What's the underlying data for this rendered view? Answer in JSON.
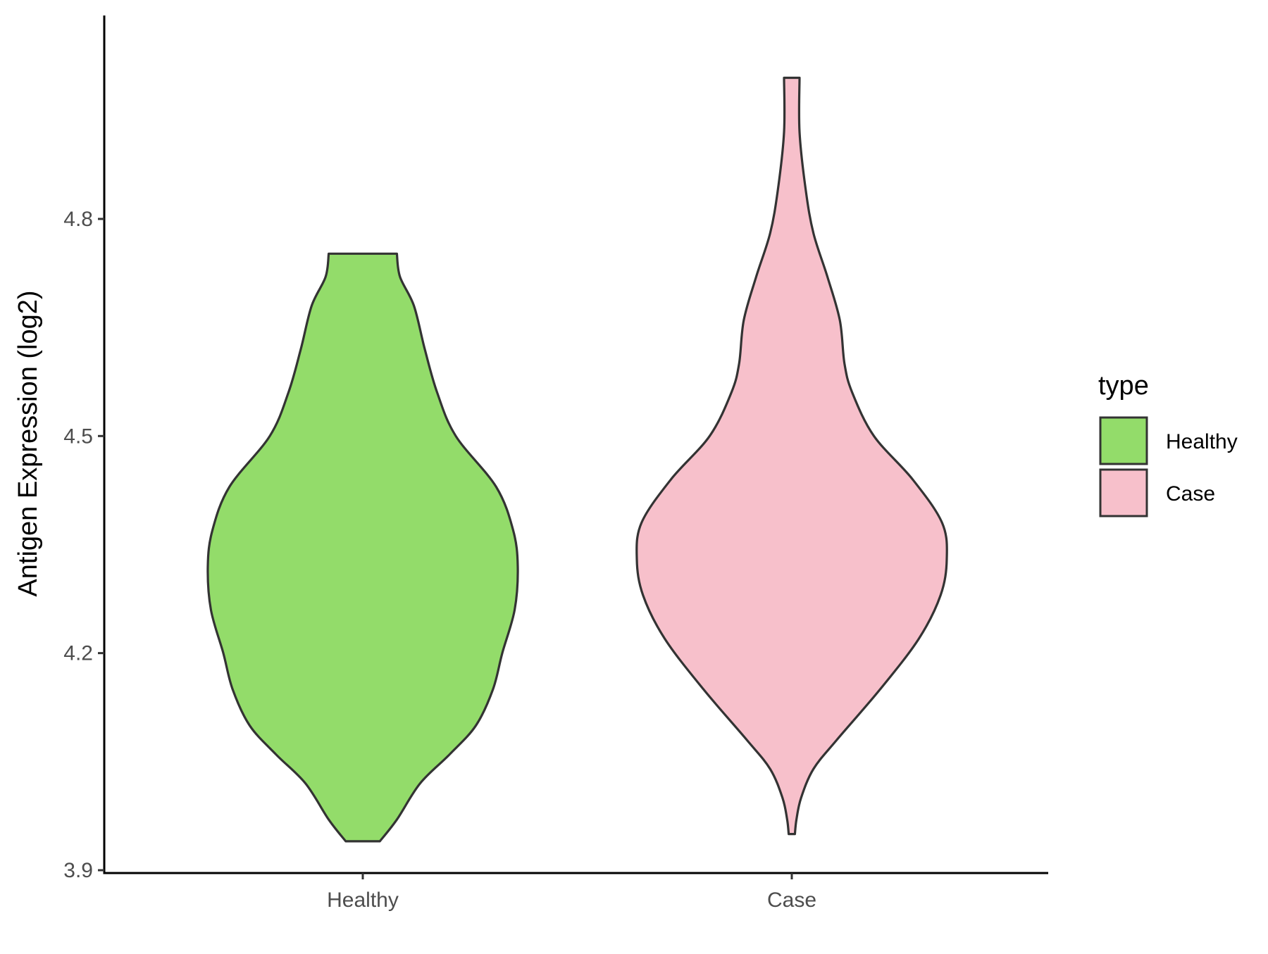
{
  "chart_data": {
    "type": "violin",
    "title": "",
    "xlabel": "",
    "ylabel": "Antigen Expression (log2)",
    "categories": [
      "Healthy",
      "Case"
    ],
    "y_ticks": [
      "3.9",
      "4.2",
      "4.5",
      "4.8"
    ],
    "y_tick_values": [
      3.9,
      4.2,
      4.5,
      4.8
    ],
    "ylim": [
      3.9,
      5.05
    ],
    "grid": false,
    "legend": {
      "title": "type",
      "position": "right",
      "entries": [
        "Healthy",
        "Case"
      ]
    },
    "series": [
      {
        "name": "Healthy",
        "color": "#93dc6a",
        "y_min": 3.94,
        "y_max": 4.752,
        "density_profile": [
          [
            3.94,
            0.11
          ],
          [
            3.97,
            0.22
          ],
          [
            4.02,
            0.37
          ],
          [
            4.06,
            0.56
          ],
          [
            4.1,
            0.73
          ],
          [
            4.15,
            0.84
          ],
          [
            4.2,
            0.9
          ],
          [
            4.26,
            0.98
          ],
          [
            4.32,
            1.0
          ],
          [
            4.37,
            0.97
          ],
          [
            4.43,
            0.86
          ],
          [
            4.5,
            0.6
          ],
          [
            4.56,
            0.48
          ],
          [
            4.62,
            0.4
          ],
          [
            4.68,
            0.33
          ],
          [
            4.72,
            0.24
          ],
          [
            4.752,
            0.22
          ]
        ]
      },
      {
        "name": "Case",
        "color": "#f7c0cb",
        "y_min": 3.95,
        "y_max": 4.995,
        "density_profile": [
          [
            3.95,
            0.02
          ],
          [
            3.97,
            0.03
          ],
          [
            4.0,
            0.06
          ],
          [
            4.04,
            0.14
          ],
          [
            4.08,
            0.29
          ],
          [
            4.15,
            0.57
          ],
          [
            4.22,
            0.82
          ],
          [
            4.28,
            0.96
          ],
          [
            4.33,
            1.0
          ],
          [
            4.38,
            0.97
          ],
          [
            4.44,
            0.78
          ],
          [
            4.5,
            0.53
          ],
          [
            4.56,
            0.39
          ],
          [
            4.6,
            0.34
          ],
          [
            4.66,
            0.31
          ],
          [
            4.72,
            0.23
          ],
          [
            4.78,
            0.14
          ],
          [
            4.84,
            0.09
          ],
          [
            4.92,
            0.05
          ],
          [
            4.995,
            0.05
          ]
        ]
      }
    ]
  }
}
